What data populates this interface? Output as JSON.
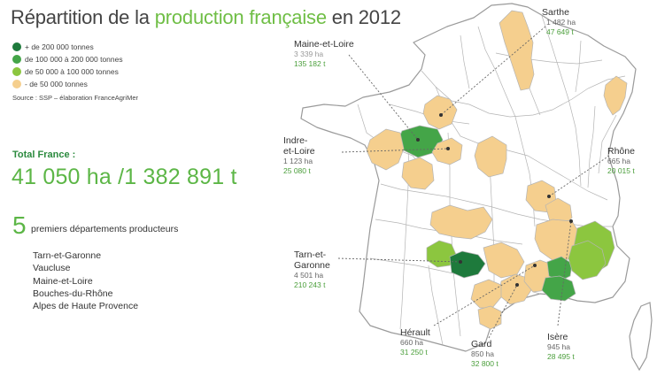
{
  "title": {
    "prefix": "Répartition de la",
    "highlight": "production française",
    "suffix": "en 2012"
  },
  "legend": {
    "items": [
      {
        "label": "+ de 200 000 tonnes",
        "color": "#1e7a3c"
      },
      {
        "label": "de 100 000 à 200 000 tonnes",
        "color": "#44a548"
      },
      {
        "label": "de 50 000 à 100 000 tonnes",
        "color": "#8cc63f"
      },
      {
        "label": "- de 50 000 tonnes",
        "color": "#f5cf8e"
      }
    ],
    "source": "Source : SSP – élaboration FranceAgriMer"
  },
  "total": {
    "label": "Total France :",
    "value": "41 050 ha /1 382 891 t"
  },
  "top5": {
    "number": "5",
    "label": "premiers départements producteurs",
    "items": [
      "Tarn-et-Garonne",
      "Vaucluse",
      "Maine-et-Loire",
      "Bouches-du-Rhône",
      "Alpes de Haute Provence"
    ]
  },
  "callouts": {
    "maine_et_loire": {
      "name_lines": [
        "Maine-et-Loire"
      ],
      "ha": "3 339 ha",
      "t": "135 182 t"
    },
    "sarthe": {
      "name_lines": [
        "Sarthe"
      ],
      "ha": "1 482 ha",
      "t": "47 649 t"
    },
    "indre_et_loire": {
      "name_lines": [
        "Indre-",
        "et-Loire"
      ],
      "ha": "1 123 ha",
      "t": "25 080 t"
    },
    "rhone": {
      "name_lines": [
        "Rhône"
      ],
      "ha": "665 ha",
      "t": "20 015 t"
    },
    "tarn_et_garonne": {
      "name_lines": [
        "Tarn-et-",
        "Garonne"
      ],
      "ha": "4 501 ha",
      "t": "210 243 t"
    },
    "herault": {
      "name_lines": [
        "Hérault"
      ],
      "ha": "660 ha",
      "t": "31 250 t"
    },
    "gard": {
      "name_lines": [
        "Gard"
      ],
      "ha": "850 ha",
      "t": "32 800 t"
    },
    "isere": {
      "name_lines": [
        "Isère"
      ],
      "ha": "945 ha",
      "t": "28 495 t"
    }
  },
  "colors": {
    "class_1": "#1e7a3c",
    "class_2": "#44a548",
    "class_3": "#8cc63f",
    "class_4": "#f5cf8e",
    "map_fill": "#ffffff",
    "map_border": "#9a9a9a"
  }
}
